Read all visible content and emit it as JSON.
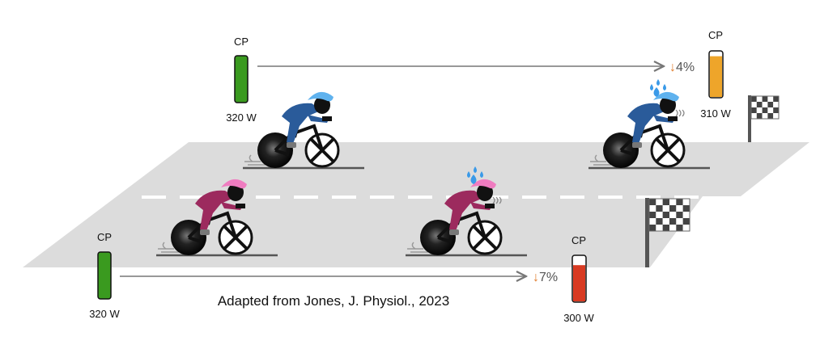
{
  "top": {
    "start": {
      "label": "CP",
      "power": "320 W",
      "fill_fraction": 1.0,
      "color": "#3a9a1f"
    },
    "end": {
      "label": "CP",
      "power": "310 W",
      "fill_fraction": 0.9,
      "color": "#eea52a"
    },
    "drop": {
      "arrow": "↓",
      "value": "4%"
    },
    "rider_color": "#2a5b9a",
    "helmet_color": "#5fb2ee"
  },
  "bottom": {
    "start": {
      "label": "CP",
      "power": "320 W",
      "fill_fraction": 1.0,
      "color": "#3a9a1f"
    },
    "end": {
      "label": "CP",
      "power": "300 W",
      "fill_fraction": 0.8,
      "color": "#d83a22"
    },
    "drop": {
      "arrow": "↓",
      "value": "7%"
    },
    "rider_color": "#9c2a5e",
    "helmet_color": "#ef7cc0"
  },
  "caption": "Adapted from Jones, J. Physiol., 2023",
  "colors": {
    "road": "#dcdcdc",
    "arrow": "#777777",
    "drop_arrow": "#e07a2a",
    "sweat": "#3a9ae8"
  }
}
